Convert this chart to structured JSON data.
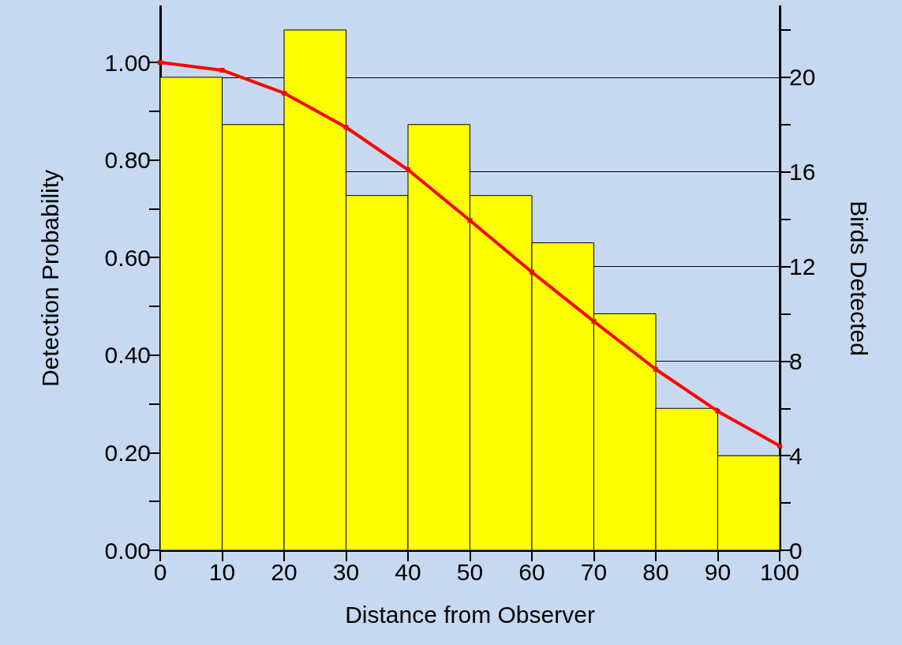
{
  "chart_data": {
    "type": "histogram",
    "xlabel": "Distance from Observer",
    "ylabel": "Detection Probability",
    "y2label": "Birds Detected",
    "bins": [
      0,
      10,
      20,
      30,
      40,
      50,
      60,
      70,
      80,
      90,
      100
    ],
    "series": [
      {
        "axis": "y2",
        "color": "#ffff00",
        "values": [
          20,
          18,
          22,
          15,
          18,
          15,
          13,
          10,
          6,
          4
        ]
      },
      {
        "type": "line",
        "color": "#ff0000",
        "x": [
          0,
          10,
          20,
          30,
          40,
          50,
          60,
          70,
          80,
          90,
          100
        ],
        "values": [
          1.0,
          0.984,
          0.937,
          0.867,
          0.78,
          0.676,
          0.57,
          0.469,
          0.371,
          0.285,
          0.214
        ]
      }
    ],
    "xlim": [
      0,
      100
    ],
    "xticks": [
      0,
      10,
      20,
      30,
      40,
      50,
      60,
      70,
      80,
      90,
      100
    ],
    "ylim": [
      0,
      1.115
    ],
    "yticks": [
      {
        "value": 0,
        "label": "0.00"
      },
      {
        "value": 0.1,
        "label": null
      },
      {
        "value": 0.2,
        "label": "0.20"
      },
      {
        "value": 0.3,
        "label": null
      },
      {
        "value": 0.4,
        "label": "0.40"
      },
      {
        "value": 0.5,
        "label": null
      },
      {
        "value": 0.6,
        "label": "0.60"
      },
      {
        "value": 0.7,
        "label": null
      },
      {
        "value": 0.8,
        "label": "0.80"
      },
      {
        "value": 0.9,
        "label": null
      },
      {
        "value": 1.0,
        "label": "1.00"
      }
    ],
    "y2lim": [
      0,
      23
    ],
    "y2ticks": [
      0,
      {
        "value": 2,
        "label": null
      },
      4,
      {
        "value": 6,
        "label": null
      },
      8,
      {
        "value": 10,
        "label": null
      },
      12,
      {
        "value": 14,
        "label": null
      },
      16,
      {
        "value": 18,
        "label": null
      },
      20,
      {
        "value": 22,
        "label": null
      }
    ],
    "grid": "y2",
    "marker": "square",
    "line_style": "solid"
  }
}
